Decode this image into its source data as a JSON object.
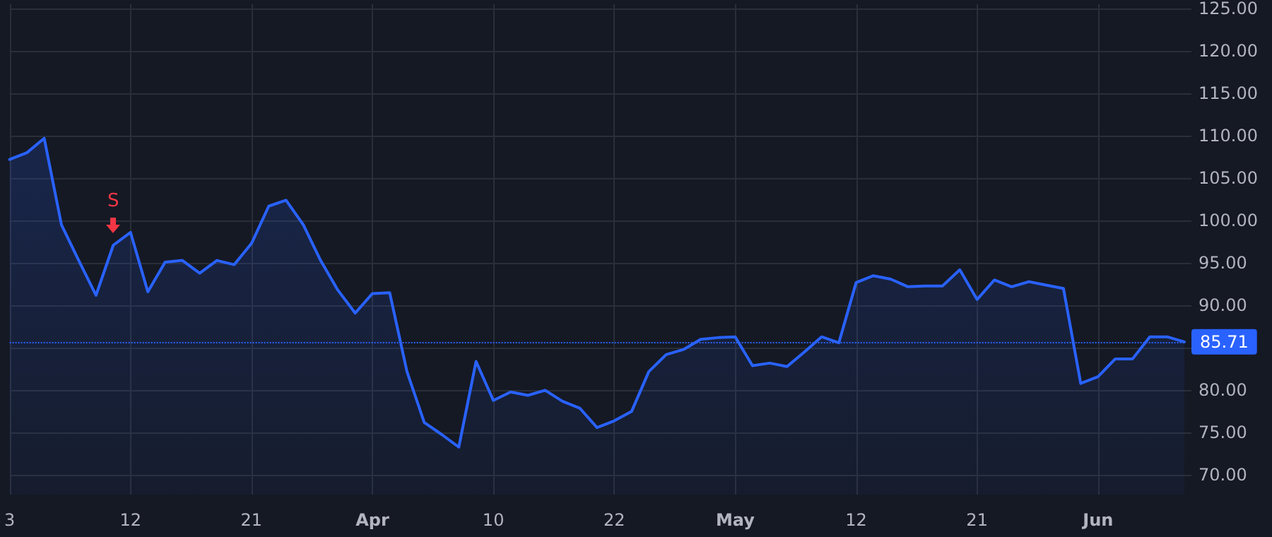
{
  "chart_data": {
    "type": "area",
    "categories": [
      "3",
      null,
      null,
      null,
      null,
      null,
      null,
      "12",
      null,
      null,
      null,
      null,
      null,
      null,
      "21",
      null,
      null,
      null,
      null,
      null,
      null,
      "Apr",
      null,
      null,
      null,
      null,
      null,
      null,
      "10",
      null,
      null,
      null,
      null,
      null,
      null,
      "22",
      null,
      null,
      null,
      null,
      null,
      null,
      "May",
      null,
      null,
      null,
      null,
      null,
      null,
      "12",
      null,
      null,
      null,
      null,
      null,
      null,
      "21",
      null,
      null,
      null,
      null,
      null,
      null,
      "Jun",
      null,
      null,
      null,
      null,
      null
    ],
    "series": [
      {
        "color": "#2962ff",
        "values": [
          107.2,
          108.0,
          109.7,
          99.5,
          95.3,
          91.2,
          97.1,
          98.6,
          91.6,
          95.1,
          95.3,
          93.8,
          95.3,
          94.8,
          97.3,
          101.7,
          102.4,
          99.5,
          95.3,
          91.8,
          89.1,
          91.4,
          91.5,
          82.2,
          76.2,
          74.8,
          73.3,
          83.4,
          78.8,
          79.8,
          79.4,
          80.0,
          78.7,
          77.9,
          75.6,
          76.4,
          77.5,
          82.2,
          84.2,
          84.8,
          86.0,
          86.2,
          86.3,
          82.9,
          83.2,
          82.8,
          84.5,
          86.3,
          85.6,
          92.7,
          93.5,
          93.1,
          92.2,
          92.3,
          92.3,
          94.2,
          90.7,
          93.0,
          92.2,
          92.8,
          92.4,
          92.0,
          80.8,
          81.6,
          83.7,
          83.7,
          86.3,
          86.3,
          85.7
        ]
      }
    ],
    "ylim": [
      67.7,
      125.5
    ],
    "yticks": [
      {
        "value": 70,
        "label": "70.00"
      },
      {
        "value": 75,
        "label": "75.00"
      },
      {
        "value": 80,
        "label": "80.00"
      },
      {
        "value": 85,
        "label": null
      },
      {
        "value": 90,
        "label": "90.00"
      },
      {
        "value": 95,
        "label": "95.00"
      },
      {
        "value": 100,
        "label": "100.00"
      },
      {
        "value": 105,
        "label": "105.00"
      },
      {
        "value": 110,
        "label": "110.00"
      },
      {
        "value": 115,
        "label": "115.00"
      },
      {
        "value": 120,
        "label": "120.00"
      },
      {
        "value": 125,
        "label": "125.00"
      }
    ],
    "ref_lines": [
      {
        "axis": "y",
        "value": 85.71,
        "label": "85.71",
        "color": "#2962ff",
        "line_style": "dotted"
      }
    ],
    "annotations": [
      {
        "text": "S",
        "y": 97.1
      }
    ],
    "grid": true,
    "marker": "none",
    "line_style": "solid"
  }
}
